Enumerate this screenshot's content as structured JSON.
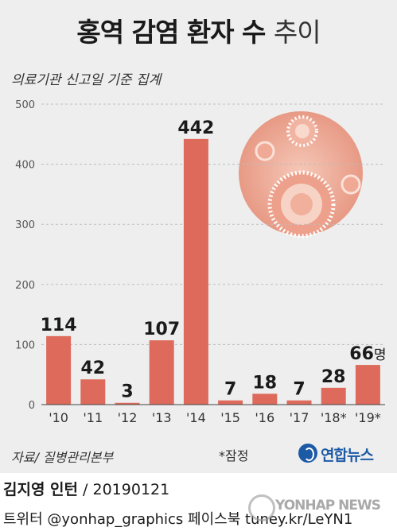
{
  "header": {
    "title_bold": "홍역 감염 환자 수",
    "title_light": "추이",
    "subtitle": "의료기관 신고일 기준 집계"
  },
  "chart_data": {
    "type": "bar",
    "categories": [
      "'10",
      "'11",
      "'12",
      "'13",
      "'14",
      "'15",
      "'16",
      "'17",
      "'18*",
      "'19*"
    ],
    "values": [
      114,
      42,
      3,
      107,
      442,
      7,
      18,
      7,
      28,
      66
    ],
    "value_labels": [
      "114",
      "42",
      "3",
      "107",
      "442",
      "7",
      "18",
      "7",
      "28",
      "66"
    ],
    "unit": "명",
    "y_ticks": [
      0,
      100,
      200,
      300,
      400,
      500
    ],
    "ylim": [
      0,
      500
    ],
    "grid": true,
    "bar_color": "#dd6a5b"
  },
  "footer": {
    "source": "자료/ 질병관리본부",
    "note": "*잠정",
    "logo": "연합뉴스",
    "credit_name": "김지영 인턴",
    "credit_date": " / 20190121",
    "social": "트위터 @yonhap_graphics  페이스북 tuney.kr/LeYN1",
    "watermark": "YONHAP NEWS"
  }
}
